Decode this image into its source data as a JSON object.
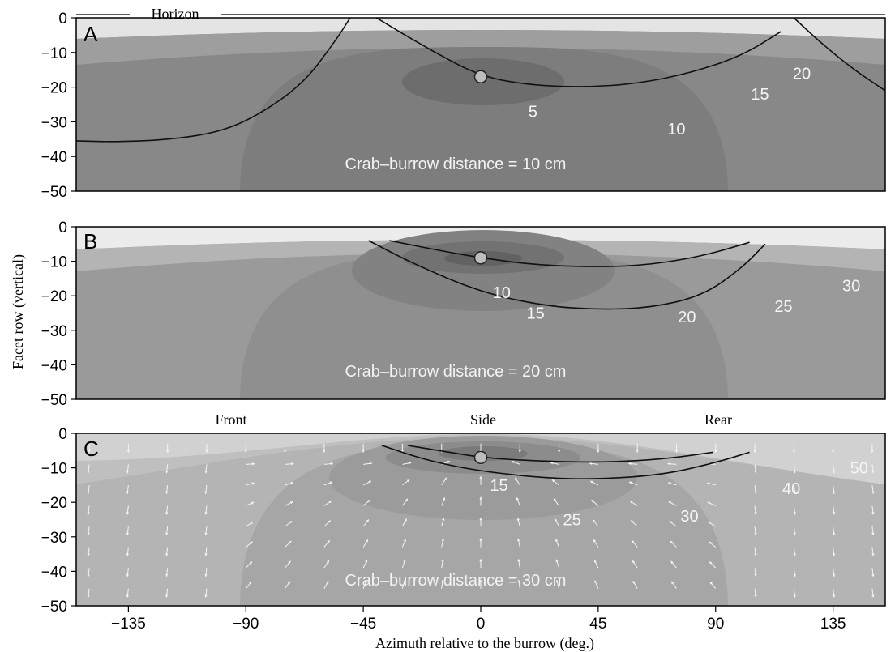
{
  "figure": {
    "ylabel": "Facet row (vertical)",
    "xlabel": "Azimuth relative to the burrow (deg.)"
  },
  "chart_data": [
    {
      "type": "heatmap",
      "panel_label": "A",
      "top_label": "Horizon",
      "annotation": "Crab–burrow distance = 10 cm",
      "xlim": [
        -155,
        155
      ],
      "ylim": [
        -50,
        0
      ],
      "xticks": [
        -135,
        -90,
        -45,
        0,
        45,
        90,
        135
      ],
      "yticks": [
        0,
        -10,
        -20,
        -30,
        -40,
        -50
      ],
      "burrow_marker": {
        "x": 0,
        "y": -17
      },
      "contour_labels": [
        {
          "text": "5",
          "x": 20,
          "y": -27
        },
        {
          "text": "10",
          "x": 75,
          "y": -32
        },
        {
          "text": "15",
          "x": 107,
          "y": -22
        },
        {
          "text": "20",
          "x": 123,
          "y": -16
        }
      ],
      "contours": [
        {
          "level": 10,
          "points": [
            [
              -40,
              0
            ],
            [
              -20,
              -9
            ],
            [
              0,
              -17
            ],
            [
              20,
              -19.5
            ],
            [
              40,
              -20
            ],
            [
              60,
              -19
            ],
            [
              80,
              -16
            ],
            [
              100,
              -11
            ],
            [
              115,
              -4
            ]
          ]
        },
        {
          "level": 15,
          "points": [
            [
              -155,
              -35.5
            ],
            [
              -140,
              -35.8
            ],
            [
              -120,
              -35.2
            ],
            [
              -100,
              -33
            ],
            [
              -85,
              -28
            ],
            [
              -68,
              -19
            ],
            [
              -56,
              -7
            ],
            [
              -50,
              0
            ]
          ]
        },
        {
          "level": 15,
          "points": [
            [
              120,
              0
            ],
            [
              130,
              -7
            ],
            [
              143,
              -15
            ],
            [
              155,
              -21
            ]
          ]
        }
      ]
    },
    {
      "type": "heatmap",
      "panel_label": "B",
      "annotation": "Crab–burrow distance = 20 cm",
      "xlim": [
        -155,
        155
      ],
      "ylim": [
        -50,
        0
      ],
      "xticks": [
        -135,
        -90,
        -45,
        0,
        45,
        90,
        135
      ],
      "yticks": [
        0,
        -10,
        -20,
        -30,
        -40,
        -50
      ],
      "burrow_marker": {
        "x": 0,
        "y": -9
      },
      "contour_labels": [
        {
          "text": "10",
          "x": 8,
          "y": -19
        },
        {
          "text": "15",
          "x": 21,
          "y": -25
        },
        {
          "text": "20",
          "x": 79,
          "y": -26
        },
        {
          "text": "25",
          "x": 116,
          "y": -23
        },
        {
          "text": "30",
          "x": 142,
          "y": -17
        }
      ],
      "contours": [
        {
          "level": 15,
          "points": [
            [
              -35,
              -4
            ],
            [
              -15,
              -7
            ],
            [
              0,
              -9
            ],
            [
              20,
              -11
            ],
            [
              45,
              -11.7
            ],
            [
              65,
              -11
            ],
            [
              85,
              -8.5
            ],
            [
              103,
              -4.5
            ]
          ]
        },
        {
          "level": 20,
          "points": [
            [
              -43,
              -4
            ],
            [
              -25,
              -11
            ],
            [
              0,
              -19
            ],
            [
              25,
              -23
            ],
            [
              45,
              -24
            ],
            [
              65,
              -23.5
            ],
            [
              85,
              -20
            ],
            [
              100,
              -12
            ],
            [
              109,
              -5
            ]
          ]
        }
      ]
    },
    {
      "type": "heatmap",
      "panel_label": "C",
      "annotation": "Crab–burrow distance = 30 cm",
      "direction_labels": [
        "Front",
        "Side",
        "Rear"
      ],
      "xlim": [
        -155,
        155
      ],
      "ylim": [
        -50,
        0
      ],
      "xticks": [
        -135,
        -90,
        -45,
        0,
        45,
        90,
        135
      ],
      "yticks": [
        0,
        -10,
        -20,
        -30,
        -40,
        -50
      ],
      "burrow_marker": {
        "x": 0,
        "y": -7
      },
      "vector_field": true,
      "contour_labels": [
        {
          "text": "15",
          "x": 7,
          "y": -15
        },
        {
          "text": "25",
          "x": 35,
          "y": -25
        },
        {
          "text": "30",
          "x": 80,
          "y": -24
        },
        {
          "text": "40",
          "x": 119,
          "y": -16
        },
        {
          "text": "50",
          "x": 145,
          "y": -10
        }
      ],
      "contours": [
        {
          "level": 25,
          "points": [
            [
              -28,
              -3.5
            ],
            [
              -12,
              -5.5
            ],
            [
              0,
              -7
            ],
            [
              20,
              -8
            ],
            [
              45,
              -8.5
            ],
            [
              70,
              -7.5
            ],
            [
              89,
              -5.5
            ]
          ]
        },
        {
          "level": 30,
          "points": [
            [
              -38,
              -3.5
            ],
            [
              -20,
              -8
            ],
            [
              0,
              -11
            ],
            [
              25,
              -13
            ],
            [
              45,
              -13.3
            ],
            [
              70,
              -12
            ],
            [
              90,
              -8.5
            ],
            [
              103,
              -5.5
            ]
          ]
        }
      ]
    }
  ]
}
